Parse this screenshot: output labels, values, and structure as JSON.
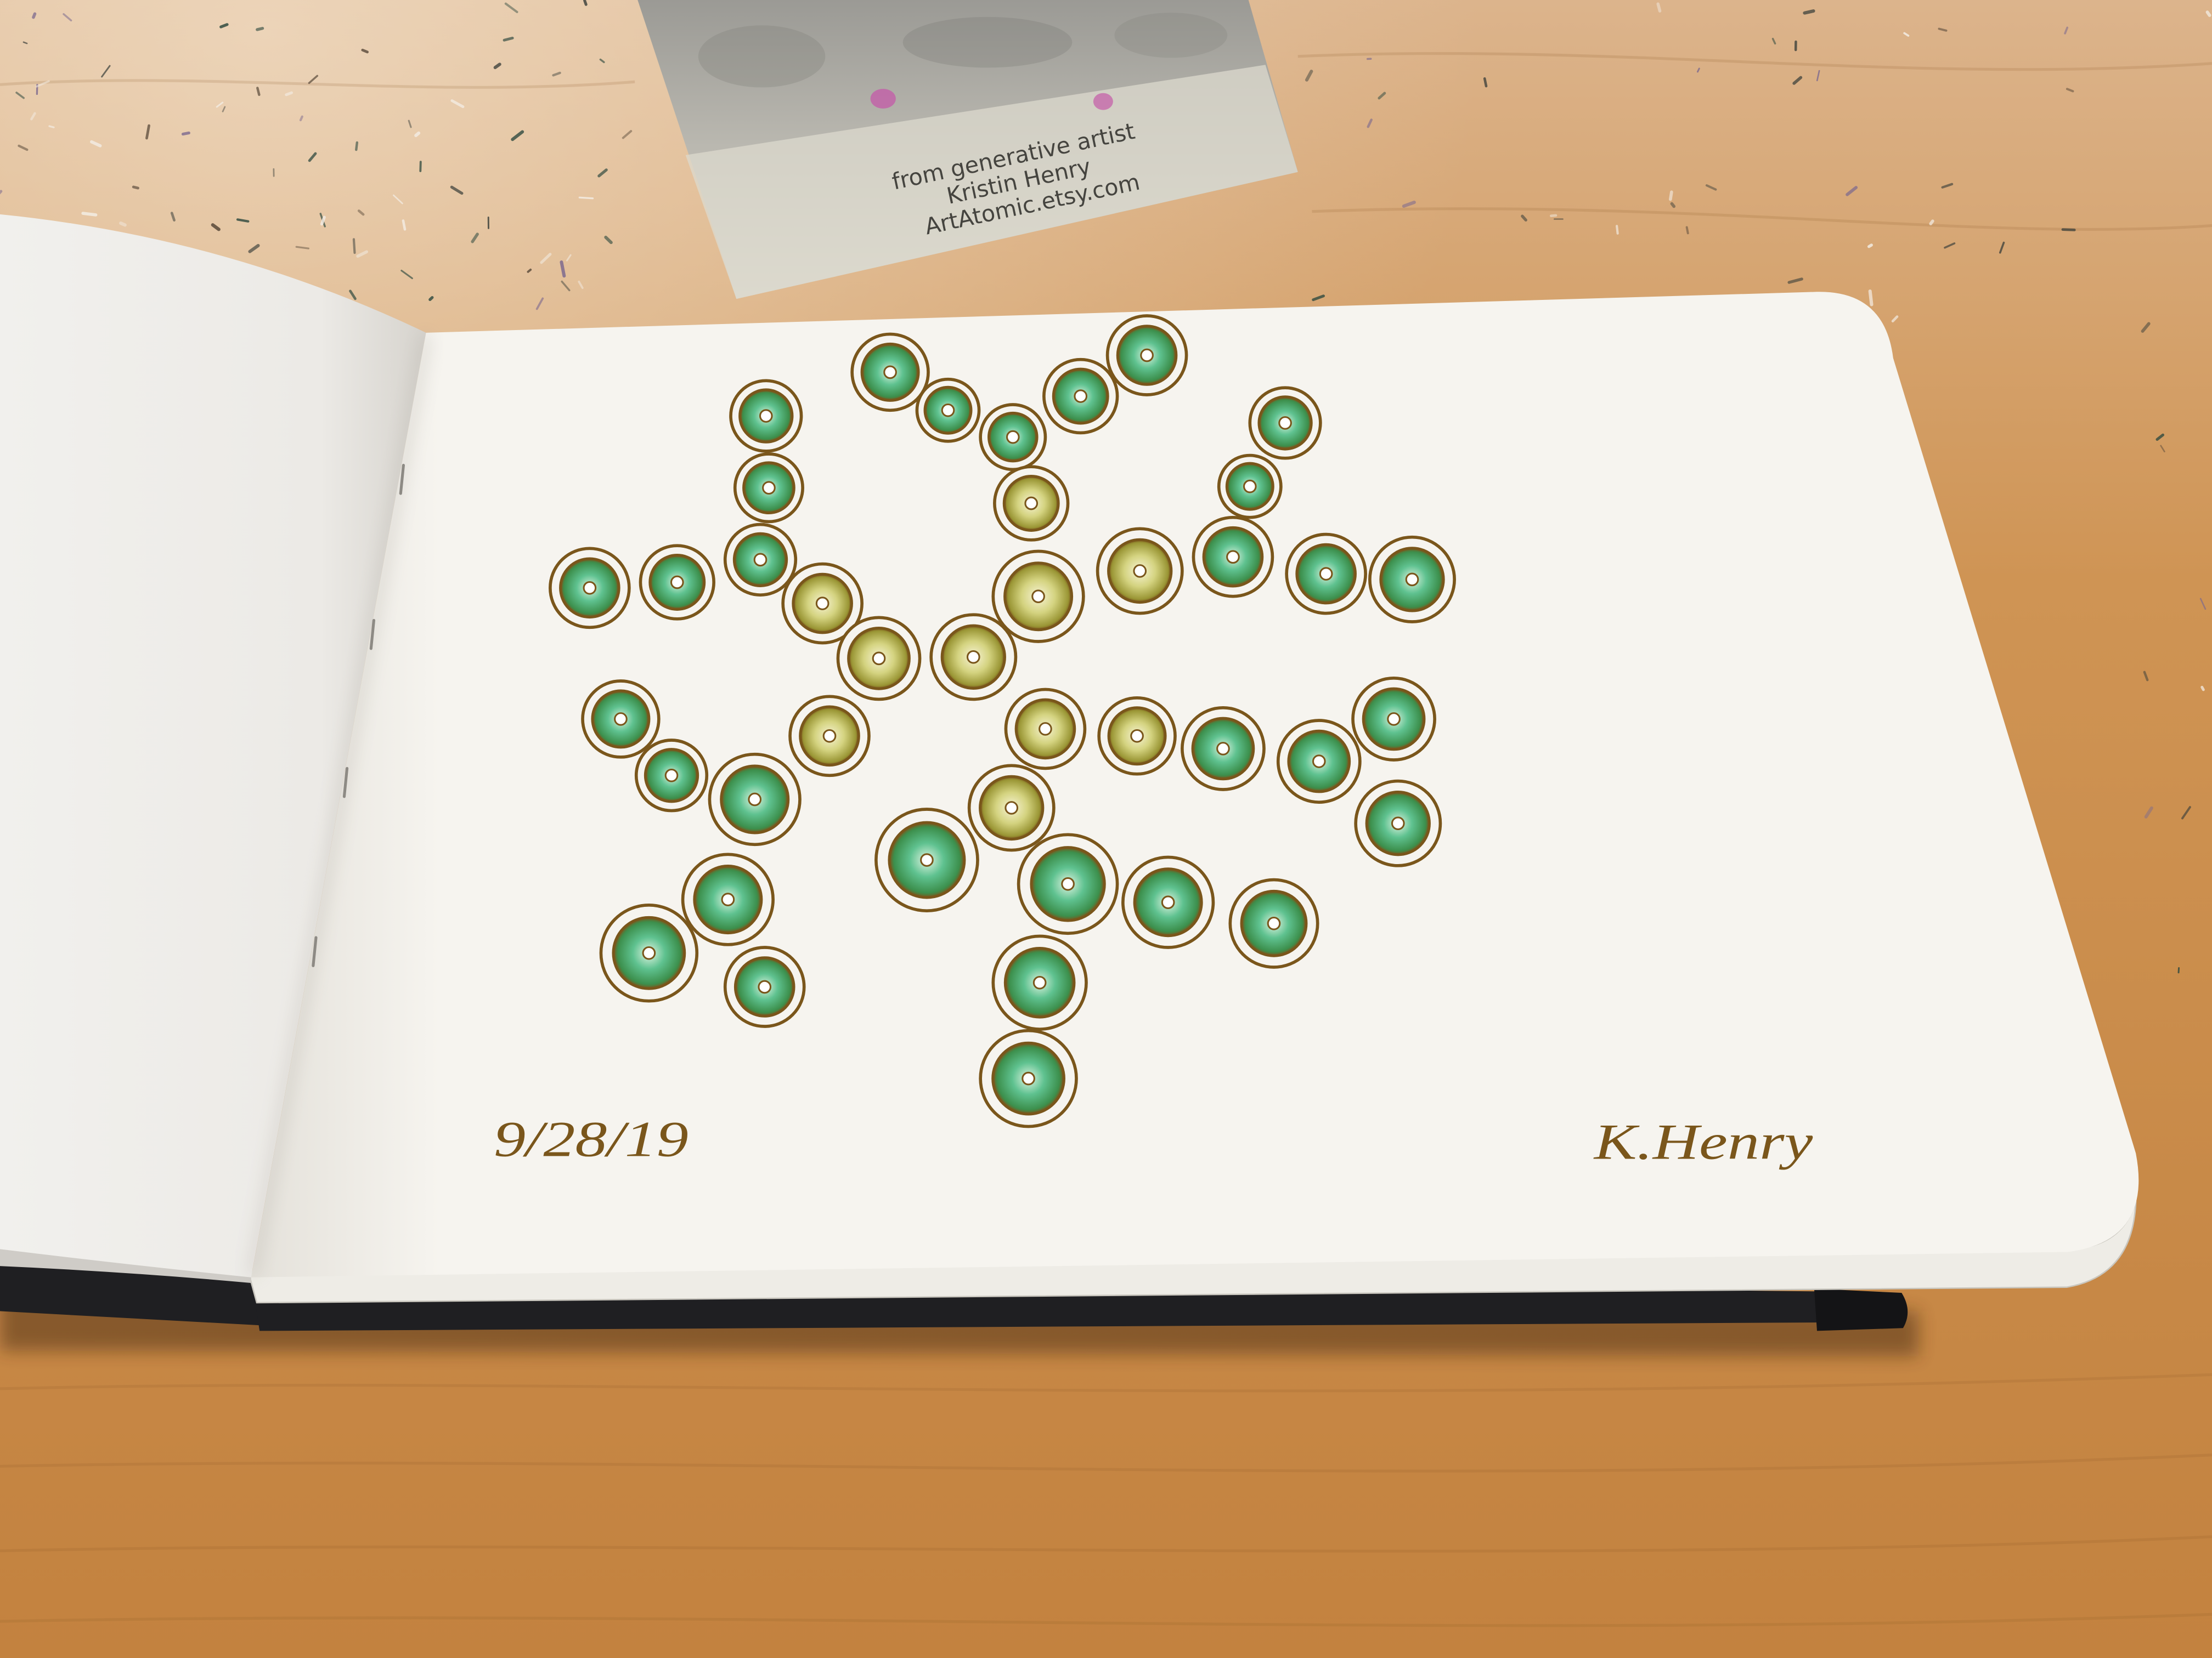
{
  "card": {
    "lines": [
      "from generative artist",
      "Kristin Henry",
      "ArtAtomic.etsy.com"
    ]
  },
  "sketchbook": {
    "date": "9/28/19",
    "signature": "K.Henry"
  },
  "colors": {
    "table_light": "#dcb48c",
    "table": "#cf9454",
    "table_dark": "#c3823f",
    "card_gray": "#9b9a95",
    "card_light": "#dad7cc",
    "paper": "#f6f4ef",
    "paper_left": "#eceae6",
    "ink": "#7a561b",
    "cover": "#1f1f22",
    "green_center": "#e2f4e2",
    "green_mid": "#5fc290",
    "green_edge": "#3c8f4c",
    "yellow_center": "#f8f4d6",
    "yellow_mid": "#d4d380",
    "yellow_edge": "#9a9635"
  }
}
